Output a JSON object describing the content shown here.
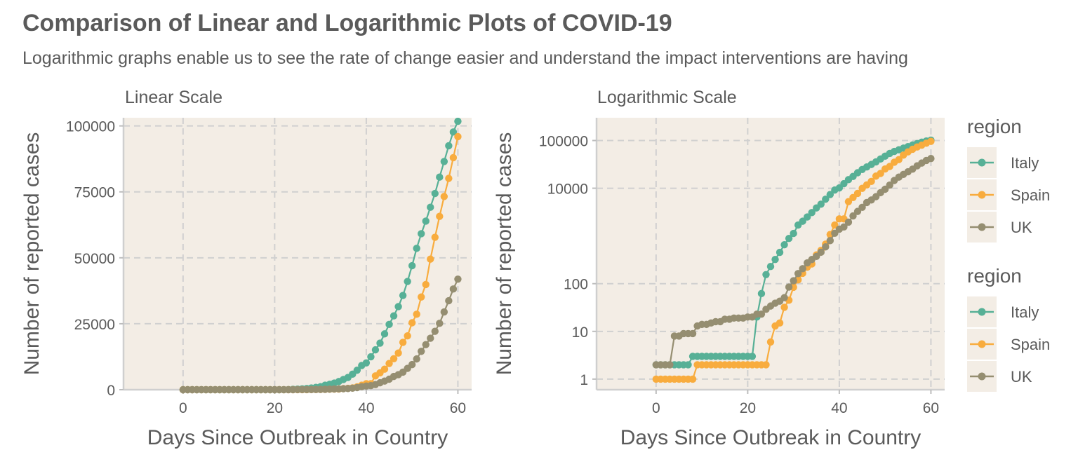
{
  "title": "Comparison of Linear and Logarithmic Plots of COVID-19",
  "subtitle": "Logarithmic graphs enable us to see the rate of change easier and understand the impact interventions are having",
  "colors": {
    "Italy": "#57b096",
    "Spain": "#f8ac3e",
    "UK": "#958e71",
    "panel_bg": "#f3ede5",
    "legend_key_bg": "#f3ede5"
  },
  "legends": [
    {
      "title": "region",
      "items": [
        "Italy",
        "Spain",
        "UK"
      ]
    },
    {
      "title": "region",
      "items": [
        "Italy",
        "Spain",
        "UK"
      ]
    }
  ],
  "chart_data": [
    {
      "type": "line",
      "panel_title": "Linear Scale",
      "xlabel": "Days Since Outbreak in Country",
      "ylabel": "Number of reported cases",
      "xlim": [
        -13,
        63
      ],
      "ylim": [
        0,
        100000
      ],
      "x_ticks": [
        0,
        20,
        40,
        60
      ],
      "y_ticks": [
        0,
        25000,
        50000,
        75000,
        100000
      ],
      "y_tick_labels": [
        "0",
        "25000",
        "50000",
        "75000",
        "100000"
      ],
      "y_scale": "linear",
      "grid": true,
      "legend_placement": "right",
      "series_ref": "series"
    },
    {
      "type": "line",
      "panel_title": "Logarithmic Scale",
      "xlabel": "Days Since Outbreak in Country",
      "ylabel": "Number of reported cases",
      "xlim": [
        -13,
        63
      ],
      "ylim": [
        0.6,
        300000
      ],
      "x_ticks": [
        0,
        20,
        40,
        60
      ],
      "y_ticks": [
        1,
        10,
        100,
        10000,
        100000
      ],
      "y_tick_labels": [
        "1",
        "10",
        "100",
        "10000",
        "100000"
      ],
      "y_scale": "log",
      "grid": true,
      "legend_placement": "right",
      "series_ref": "series"
    }
  ],
  "series": [
    {
      "name": "Italy",
      "x": [
        0,
        1,
        2,
        3,
        4,
        5,
        6,
        7,
        8,
        9,
        10,
        11,
        12,
        13,
        14,
        15,
        16,
        17,
        18,
        19,
        20,
        21,
        22,
        23,
        24,
        25,
        26,
        27,
        28,
        29,
        30,
        31,
        32,
        33,
        34,
        35,
        36,
        37,
        38,
        39,
        40,
        41,
        42,
        43,
        44,
        45,
        46,
        47,
        48,
        49,
        50,
        51,
        52,
        53,
        54,
        55,
        56,
        57,
        58,
        59,
        60
      ],
      "y": [
        2,
        2,
        2,
        2,
        2,
        2,
        2,
        2,
        3,
        3,
        3,
        3,
        3,
        3,
        3,
        3,
        3,
        3,
        3,
        3,
        3,
        3,
        20,
        62,
        155,
        229,
        322,
        453,
        655,
        888,
        1128,
        1694,
        2036,
        2502,
        3089,
        3858,
        4636,
        5883,
        7375,
        9172,
        10149,
        12462,
        15113,
        17660,
        21157,
        24747,
        27980,
        31506,
        35713,
        41035,
        47021,
        53578,
        59138,
        63927,
        69176,
        74386,
        80589,
        86498,
        92472,
        97689,
        101739
      ]
    },
    {
      "name": "Spain",
      "x": [
        0,
        1,
        2,
        3,
        4,
        5,
        6,
        7,
        8,
        9,
        10,
        11,
        12,
        13,
        14,
        15,
        16,
        17,
        18,
        19,
        20,
        21,
        22,
        23,
        24,
        25,
        26,
        27,
        28,
        29,
        30,
        31,
        32,
        33,
        34,
        35,
        36,
        37,
        38,
        39,
        40,
        41,
        42,
        43,
        44,
        45,
        46,
        47,
        48,
        49,
        50,
        51,
        52,
        53,
        54,
        55,
        56,
        57,
        58,
        59,
        60
      ],
      "y": [
        1,
        1,
        1,
        1,
        1,
        1,
        1,
        1,
        1,
        2,
        2,
        2,
        2,
        2,
        2,
        2,
        2,
        2,
        2,
        2,
        2,
        2,
        2,
        2,
        2,
        6,
        13,
        15,
        32,
        45,
        84,
        120,
        165,
        222,
        259,
        400,
        500,
        673,
        1073,
        1695,
        2277,
        2277,
        5232,
        6391,
        7798,
        9942,
        11748,
        13910,
        17963,
        20410,
        25374,
        28603,
        35136,
        39885,
        49515,
        57786,
        65719,
        73235,
        80110,
        87956,
        95923
      ]
    },
    {
      "name": "UK",
      "x": [
        0,
        1,
        2,
        3,
        4,
        5,
        6,
        7,
        8,
        9,
        10,
        11,
        12,
        13,
        14,
        15,
        16,
        17,
        18,
        19,
        20,
        21,
        22,
        23,
        24,
        25,
        26,
        27,
        28,
        29,
        30,
        31,
        32,
        33,
        34,
        35,
        36,
        37,
        38,
        39,
        40,
        41,
        42,
        43,
        44,
        45,
        46,
        47,
        48,
        49,
        50,
        51,
        52,
        53,
        54,
        55,
        56,
        57,
        58,
        59,
        60
      ],
      "y": [
        2,
        2,
        2,
        2,
        8,
        8,
        9,
        9,
        9,
        13,
        14,
        14,
        15,
        16,
        16,
        18,
        18,
        19,
        19,
        19,
        20,
        20,
        23,
        23,
        29,
        34,
        39,
        43,
        51,
        85,
        115,
        163,
        206,
        273,
        321,
        373,
        456,
        590,
        798,
        1140,
        1391,
        1543,
        1950,
        2626,
        3269,
        3983,
        5018,
        5683,
        6650,
        8077,
        9529,
        11658,
        14543,
        17089,
        19522,
        22141,
        25150,
        29474,
        33718,
        38168,
        41903
      ]
    }
  ]
}
